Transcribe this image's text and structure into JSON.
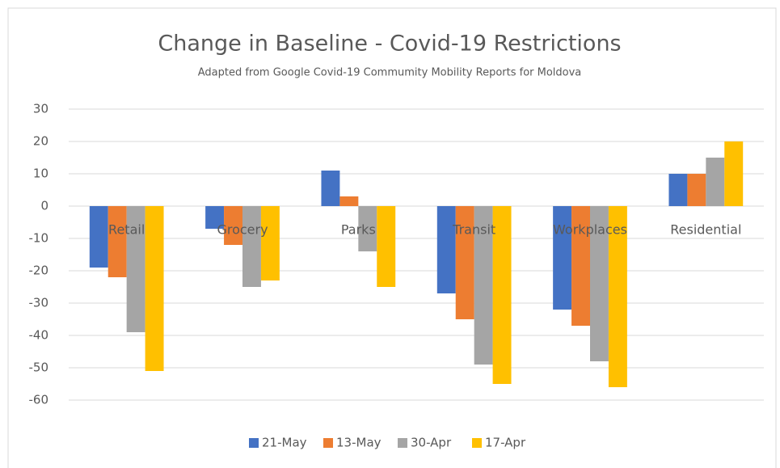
{
  "chart_data": {
    "type": "bar",
    "title": "Change in Baseline - Covid-19 Restrictions",
    "subtitle": "Adapted from Google Covid-19 Commumity Mobility Reports for Moldova",
    "categories": [
      "Retail",
      "Grocery",
      "Parks",
      "Transit",
      "Workplaces",
      "Residential"
    ],
    "series": [
      {
        "name": "21-May",
        "color": "#4472c4",
        "values": [
          -19,
          -7,
          11,
          -27,
          -32,
          10
        ]
      },
      {
        "name": "13-May",
        "color": "#ed7d31",
        "values": [
          -22,
          -12,
          3,
          -35,
          -37,
          10
        ]
      },
      {
        "name": "30-Apr",
        "color": "#a5a5a5",
        "values": [
          -39,
          -25,
          -14,
          -49,
          -48,
          15
        ]
      },
      {
        "name": "17-Apr",
        "color": "#ffc000",
        "values": [
          -51,
          -23,
          -25,
          -55,
          -56,
          20
        ]
      }
    ],
    "ylim": [
      -60,
      30
    ],
    "yticks": [
      -60,
      -50,
      -40,
      -30,
      -20,
      -10,
      0,
      10,
      20,
      30
    ],
    "grid": true,
    "legend": "bottom"
  }
}
